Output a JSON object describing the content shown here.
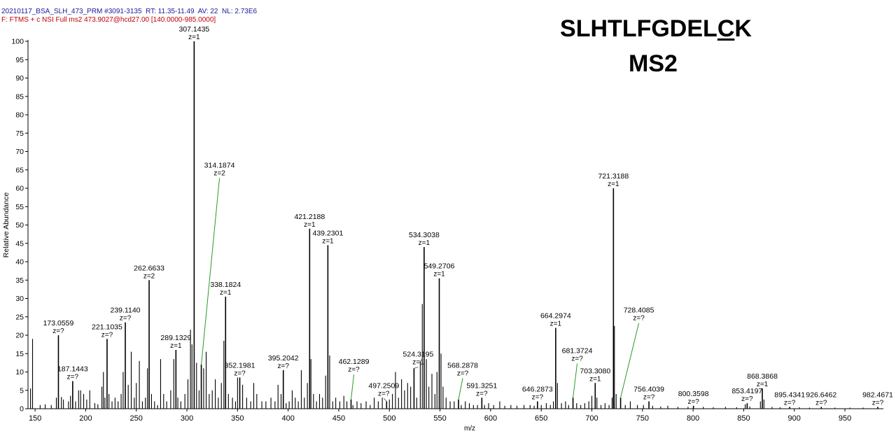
{
  "header": {
    "line1": "20210117_BSA_SLH_473_PRM #3091-3135  RT: 11.35-11.49  AV: 22  NL: 2.73E6",
    "line2": "F: FTMS + c NSI Full ms2 473.9027@hcd27.00 [140.0000-985.0000]"
  },
  "annotation": {
    "peptide_prefix": "SLHTLFGDEL",
    "peptide_marked": "C",
    "peptide_suffix": "K",
    "scan_type": "MS2"
  },
  "colors": {
    "header1": "#1a1aa0",
    "header2": "#c00000",
    "leader": "#2a9a2a",
    "peaks": "#000000"
  },
  "chart_data": {
    "type": "bar",
    "title": "",
    "xlabel": "m/z",
    "ylabel": "Relative Abundance",
    "xlim": [
      143,
      988
    ],
    "ylim": [
      0,
      100
    ],
    "xticks": [
      150,
      200,
      250,
      300,
      350,
      400,
      450,
      500,
      550,
      600,
      650,
      700,
      750,
      800,
      850,
      900,
      950
    ],
    "yticks": [
      0,
      5,
      10,
      15,
      20,
      25,
      30,
      35,
      40,
      45,
      50,
      55,
      60,
      65,
      70,
      75,
      80,
      85,
      90,
      95,
      100
    ],
    "labeled_peaks": [
      {
        "mz": 173.0559,
        "intensity": 20,
        "label": "173.0559",
        "charge": "z=?"
      },
      {
        "mz": 187.1443,
        "intensity": 7.5,
        "label": "187.1443",
        "charge": "z=?"
      },
      {
        "mz": 221.1035,
        "intensity": 19,
        "label": "221.1035",
        "charge": "z=?"
      },
      {
        "mz": 239.114,
        "intensity": 23.5,
        "label": "239.1140",
        "charge": "z=?"
      },
      {
        "mz": 262.6633,
        "intensity": 35,
        "label": "262.6633",
        "charge": "z=2"
      },
      {
        "mz": 289.1329,
        "intensity": 16,
        "label": "289.1329",
        "charge": "z=1"
      },
      {
        "mz": 307.1435,
        "intensity": 100,
        "label": "307.1435",
        "charge": "z=1"
      },
      {
        "mz": 314.1874,
        "intensity": 12,
        "label": "314.1874",
        "charge": "z=2",
        "label_intensity": 63
      },
      {
        "mz": 338.1824,
        "intensity": 30.5,
        "label": "338.1824",
        "charge": "z=1"
      },
      {
        "mz": 352.1981,
        "intensity": 8.5,
        "label": "352.1981",
        "charge": "z=?"
      },
      {
        "mz": 395.2042,
        "intensity": 10.5,
        "label": "395.2042",
        "charge": "z=?"
      },
      {
        "mz": 421.2188,
        "intensity": 49,
        "label": "421.2188",
        "charge": "z=1"
      },
      {
        "mz": 439.2301,
        "intensity": 44.5,
        "label": "439.2301",
        "charge": "z=1"
      },
      {
        "mz": 462.1289,
        "intensity": 2.5,
        "label": "462.1289",
        "charge": "z=?",
        "label_intensity": 9.5
      },
      {
        "mz": 497.2509,
        "intensity": 2,
        "label": "497.2509",
        "charge": "z=?",
        "label_intensity": 3
      },
      {
        "mz": 524.3195,
        "intensity": 11,
        "label": "524.3195",
        "charge": "z=1",
        "label_intensity": 11.5
      },
      {
        "mz": 534.3038,
        "intensity": 44,
        "label": "534.3038",
        "charge": "z=1"
      },
      {
        "mz": 549.2706,
        "intensity": 35.5,
        "label": "549.2706",
        "charge": "z=1"
      },
      {
        "mz": 568.2878,
        "intensity": 2.5,
        "label": "568.2878",
        "charge": "z=?",
        "label_intensity": 8.5
      },
      {
        "mz": 591.3251,
        "intensity": 3,
        "label": "591.3251",
        "charge": "z=?"
      },
      {
        "mz": 646.2873,
        "intensity": 2,
        "label": "646.2873",
        "charge": "z=?"
      },
      {
        "mz": 664.2974,
        "intensity": 22,
        "label": "664.2974",
        "charge": "z=1"
      },
      {
        "mz": 681.3724,
        "intensity": 3,
        "label": "681.3724",
        "charge": "z=?",
        "label_intensity": 12.5
      },
      {
        "mz": 703.308,
        "intensity": 7,
        "label": "703.3080",
        "charge": "z=1"
      },
      {
        "mz": 721.3188,
        "intensity": 60,
        "label": "721.3188",
        "charge": "z=1"
      },
      {
        "mz": 728.4085,
        "intensity": 3,
        "label": "728.4085",
        "charge": "z=?",
        "label_intensity": 23.5
      },
      {
        "mz": 756.4039,
        "intensity": 2,
        "label": "756.4039",
        "charge": "z=?"
      },
      {
        "mz": 800.3598,
        "intensity": 0.8,
        "label": "800.3598",
        "charge": "z=?"
      },
      {
        "mz": 853.4197,
        "intensity": 1.5,
        "label": "853.4197",
        "charge": "z=?"
      },
      {
        "mz": 868.3868,
        "intensity": 5.5,
        "label": "868.3868",
        "charge": "z=1"
      },
      {
        "mz": 895.4341,
        "intensity": 0.5,
        "label": "895.4341",
        "charge": "z=?"
      },
      {
        "mz": 926.6462,
        "intensity": 0.5,
        "label": "926.6462",
        "charge": "z=?"
      },
      {
        "mz": 982.4671,
        "intensity": 0.5,
        "label": "982.4671",
        "charge": "z=?"
      }
    ],
    "unlabeled_peaks": [
      {
        "mz": 145.5,
        "intensity": 5.5
      },
      {
        "mz": 147.5,
        "intensity": 19
      },
      {
        "mz": 155,
        "intensity": 1
      },
      {
        "mz": 160,
        "intensity": 1.2
      },
      {
        "mz": 166,
        "intensity": 1
      },
      {
        "mz": 171,
        "intensity": 3
      },
      {
        "mz": 176,
        "intensity": 3.2
      },
      {
        "mz": 178,
        "intensity": 2.5
      },
      {
        "mz": 183,
        "intensity": 2
      },
      {
        "mz": 185,
        "intensity": 3.5
      },
      {
        "mz": 190,
        "intensity": 2
      },
      {
        "mz": 193,
        "intensity": 5
      },
      {
        "mz": 195,
        "intensity": 5
      },
      {
        "mz": 198,
        "intensity": 4
      },
      {
        "mz": 201,
        "intensity": 2.5
      },
      {
        "mz": 204,
        "intensity": 5
      },
      {
        "mz": 209,
        "intensity": 1.5
      },
      {
        "mz": 212,
        "intensity": 1.2
      },
      {
        "mz": 216,
        "intensity": 6
      },
      {
        "mz": 217.5,
        "intensity": 10
      },
      {
        "mz": 219,
        "intensity": 3
      },
      {
        "mz": 223,
        "intensity": 4
      },
      {
        "mz": 226,
        "intensity": 2
      },
      {
        "mz": 229,
        "intensity": 3
      },
      {
        "mz": 232,
        "intensity": 2
      },
      {
        "mz": 235,
        "intensity": 4
      },
      {
        "mz": 237,
        "intensity": 10
      },
      {
        "mz": 242,
        "intensity": 6.5
      },
      {
        "mz": 245,
        "intensity": 15.5
      },
      {
        "mz": 248,
        "intensity": 3
      },
      {
        "mz": 250,
        "intensity": 7
      },
      {
        "mz": 253,
        "intensity": 13
      },
      {
        "mz": 256,
        "intensity": 2
      },
      {
        "mz": 259,
        "intensity": 3
      },
      {
        "mz": 261,
        "intensity": 11
      },
      {
        "mz": 265,
        "intensity": 4
      },
      {
        "mz": 268,
        "intensity": 2
      },
      {
        "mz": 271,
        "intensity": 1
      },
      {
        "mz": 274,
        "intensity": 13.5
      },
      {
        "mz": 277,
        "intensity": 4
      },
      {
        "mz": 280,
        "intensity": 2
      },
      {
        "mz": 284,
        "intensity": 5
      },
      {
        "mz": 287,
        "intensity": 13.5
      },
      {
        "mz": 291,
        "intensity": 3
      },
      {
        "mz": 294,
        "intensity": 2
      },
      {
        "mz": 298,
        "intensity": 4
      },
      {
        "mz": 301,
        "intensity": 8
      },
      {
        "mz": 303.5,
        "intensity": 21.5
      },
      {
        "mz": 305,
        "intensity": 17.5
      },
      {
        "mz": 309.5,
        "intensity": 12.5
      },
      {
        "mz": 312,
        "intensity": 5
      },
      {
        "mz": 316.5,
        "intensity": 11
      },
      {
        "mz": 319,
        "intensity": 15.5
      },
      {
        "mz": 322,
        "intensity": 4
      },
      {
        "mz": 325,
        "intensity": 5
      },
      {
        "mz": 328,
        "intensity": 8
      },
      {
        "mz": 331,
        "intensity": 3
      },
      {
        "mz": 334,
        "intensity": 7
      },
      {
        "mz": 336.5,
        "intensity": 18.5
      },
      {
        "mz": 341,
        "intensity": 4
      },
      {
        "mz": 345,
        "intensity": 3
      },
      {
        "mz": 348,
        "intensity": 2
      },
      {
        "mz": 350,
        "intensity": 8.5
      },
      {
        "mz": 355,
        "intensity": 6.5
      },
      {
        "mz": 359,
        "intensity": 3
      },
      {
        "mz": 363,
        "intensity": 2
      },
      {
        "mz": 366,
        "intensity": 7
      },
      {
        "mz": 369,
        "intensity": 4
      },
      {
        "mz": 374,
        "intensity": 2
      },
      {
        "mz": 378,
        "intensity": 2
      },
      {
        "mz": 383,
        "intensity": 3
      },
      {
        "mz": 387,
        "intensity": 2
      },
      {
        "mz": 390,
        "intensity": 6.5
      },
      {
        "mz": 393,
        "intensity": 4
      },
      {
        "mz": 398,
        "intensity": 1.5
      },
      {
        "mz": 401,
        "intensity": 2
      },
      {
        "mz": 404,
        "intensity": 5
      },
      {
        "mz": 407,
        "intensity": 3
      },
      {
        "mz": 410,
        "intensity": 2
      },
      {
        "mz": 413,
        "intensity": 10.5
      },
      {
        "mz": 416,
        "intensity": 3
      },
      {
        "mz": 419,
        "intensity": 7
      },
      {
        "mz": 422.5,
        "intensity": 13.5
      },
      {
        "mz": 425,
        "intensity": 4
      },
      {
        "mz": 428,
        "intensity": 2
      },
      {
        "mz": 431,
        "intensity": 4
      },
      {
        "mz": 434,
        "intensity": 3
      },
      {
        "mz": 437,
        "intensity": 9
      },
      {
        "mz": 441,
        "intensity": 14.5
      },
      {
        "mz": 444,
        "intensity": 2
      },
      {
        "mz": 447,
        "intensity": 3
      },
      {
        "mz": 451,
        "intensity": 2
      },
      {
        "mz": 455,
        "intensity": 3.5
      },
      {
        "mz": 458,
        "intensity": 2
      },
      {
        "mz": 464,
        "intensity": 1
      },
      {
        "mz": 468,
        "intensity": 2
      },
      {
        "mz": 472,
        "intensity": 1.5
      },
      {
        "mz": 477,
        "intensity": 2
      },
      {
        "mz": 481,
        "intensity": 1
      },
      {
        "mz": 485,
        "intensity": 3
      },
      {
        "mz": 489,
        "intensity": 2
      },
      {
        "mz": 493,
        "intensity": 3
      },
      {
        "mz": 500,
        "intensity": 2.5
      },
      {
        "mz": 503,
        "intensity": 4
      },
      {
        "mz": 506,
        "intensity": 10
      },
      {
        "mz": 509,
        "intensity": 3
      },
      {
        "mz": 512,
        "intensity": 8
      },
      {
        "mz": 515,
        "intensity": 5
      },
      {
        "mz": 518,
        "intensity": 7
      },
      {
        "mz": 521,
        "intensity": 6
      },
      {
        "mz": 527,
        "intensity": 3
      },
      {
        "mz": 530.5,
        "intensity": 13
      },
      {
        "mz": 532.5,
        "intensity": 28.5
      },
      {
        "mz": 536.5,
        "intensity": 13.5
      },
      {
        "mz": 539,
        "intensity": 6
      },
      {
        "mz": 542,
        "intensity": 9.5
      },
      {
        "mz": 545,
        "intensity": 4
      },
      {
        "mz": 547,
        "intensity": 10
      },
      {
        "mz": 551,
        "intensity": 15
      },
      {
        "mz": 553,
        "intensity": 6
      },
      {
        "mz": 556,
        "intensity": 3
      },
      {
        "mz": 560,
        "intensity": 2
      },
      {
        "mz": 564,
        "intensity": 2
      },
      {
        "mz": 571,
        "intensity": 1
      },
      {
        "mz": 575,
        "intensity": 2
      },
      {
        "mz": 579,
        "intensity": 1.5
      },
      {
        "mz": 583,
        "intensity": 1
      },
      {
        "mz": 587,
        "intensity": 1
      },
      {
        "mz": 594,
        "intensity": 1
      },
      {
        "mz": 598,
        "intensity": 1.5
      },
      {
        "mz": 603,
        "intensity": 1
      },
      {
        "mz": 609,
        "intensity": 2
      },
      {
        "mz": 614,
        "intensity": 0.8
      },
      {
        "mz": 620,
        "intensity": 1
      },
      {
        "mz": 626,
        "intensity": 0.8
      },
      {
        "mz": 633,
        "intensity": 1
      },
      {
        "mz": 639,
        "intensity": 1
      },
      {
        "mz": 643,
        "intensity": 0.8
      },
      {
        "mz": 650,
        "intensity": 1
      },
      {
        "mz": 655,
        "intensity": 1.5
      },
      {
        "mz": 659,
        "intensity": 1
      },
      {
        "mz": 662,
        "intensity": 2
      },
      {
        "mz": 666,
        "intensity": 7
      },
      {
        "mz": 670,
        "intensity": 1.5
      },
      {
        "mz": 674,
        "intensity": 2
      },
      {
        "mz": 677,
        "intensity": 1
      },
      {
        "mz": 685,
        "intensity": 1.5
      },
      {
        "mz": 689,
        "intensity": 1
      },
      {
        "mz": 693,
        "intensity": 1.5
      },
      {
        "mz": 697,
        "intensity": 2
      },
      {
        "mz": 700,
        "intensity": 3.5
      },
      {
        "mz": 705,
        "intensity": 3
      },
      {
        "mz": 709,
        "intensity": 1
      },
      {
        "mz": 713,
        "intensity": 1.5
      },
      {
        "mz": 717,
        "intensity": 1
      },
      {
        "mz": 720,
        "intensity": 3
      },
      {
        "mz": 722.3,
        "intensity": 22.5
      },
      {
        "mz": 724,
        "intensity": 4
      },
      {
        "mz": 733,
        "intensity": 1
      },
      {
        "mz": 738,
        "intensity": 2
      },
      {
        "mz": 745,
        "intensity": 1
      },
      {
        "mz": 751,
        "intensity": 1
      },
      {
        "mz": 760,
        "intensity": 0.8
      },
      {
        "mz": 768,
        "intensity": 0.6
      },
      {
        "mz": 775,
        "intensity": 0.8
      },
      {
        "mz": 785,
        "intensity": 0.5
      },
      {
        "mz": 795,
        "intensity": 0.5
      },
      {
        "mz": 810,
        "intensity": 0.5
      },
      {
        "mz": 820,
        "intensity": 0.4
      },
      {
        "mz": 832,
        "intensity": 0.5
      },
      {
        "mz": 843,
        "intensity": 0.4
      },
      {
        "mz": 851.5,
        "intensity": 1.2
      },
      {
        "mz": 856,
        "intensity": 0.6
      },
      {
        "mz": 866.5,
        "intensity": 2
      },
      {
        "mz": 870,
        "intensity": 2.5
      },
      {
        "mz": 878,
        "intensity": 0.5
      },
      {
        "mz": 886,
        "intensity": 0.4
      },
      {
        "mz": 905,
        "intensity": 0.4
      },
      {
        "mz": 915,
        "intensity": 0.3
      },
      {
        "mz": 940,
        "intensity": 0.3
      },
      {
        "mz": 955,
        "intensity": 0.3
      },
      {
        "mz": 968,
        "intensity": 0.3
      }
    ]
  }
}
